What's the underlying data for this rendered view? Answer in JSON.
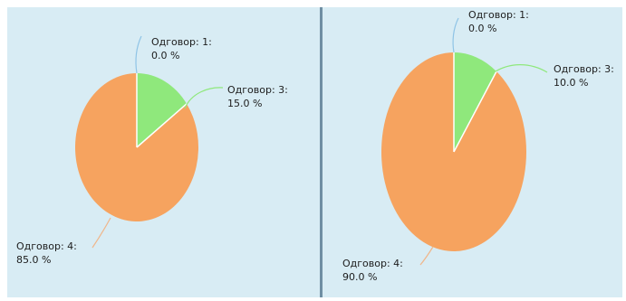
{
  "chart_data": [
    {
      "type": "pie",
      "title": "",
      "slices": [
        {
          "label": "Одговор: 1:",
          "value": 0.0,
          "value_text": "0.0 %",
          "color": "#8fc4e6"
        },
        {
          "label": "Одговор: 3:",
          "value": 15.0,
          "value_text": "15.0 %",
          "color": "#8fe87c"
        },
        {
          "label": "Одговор: 4:",
          "value": 85.0,
          "value_text": "85.0 %",
          "color": "#f6a35f"
        }
      ]
    },
    {
      "type": "pie",
      "title": "",
      "slices": [
        {
          "label": "Одговор: 1:",
          "value": 0.0,
          "value_text": "0.0 %",
          "color": "#8fc4e6"
        },
        {
          "label": "Одговор: 3:",
          "value": 10.0,
          "value_text": "10.0 %",
          "color": "#8fe87c"
        },
        {
          "label": "Одговор: 4:",
          "value": 90.0,
          "value_text": "90.0 %",
          "color": "#f6a35f"
        }
      ]
    }
  ],
  "colors": {
    "panel_background": "#d8ecf4",
    "divider": "#6f8fa3",
    "leader_line_1": "#8fc4e6",
    "leader_line_3": "#8fe87c",
    "leader_line_4": "#f0b68a"
  }
}
